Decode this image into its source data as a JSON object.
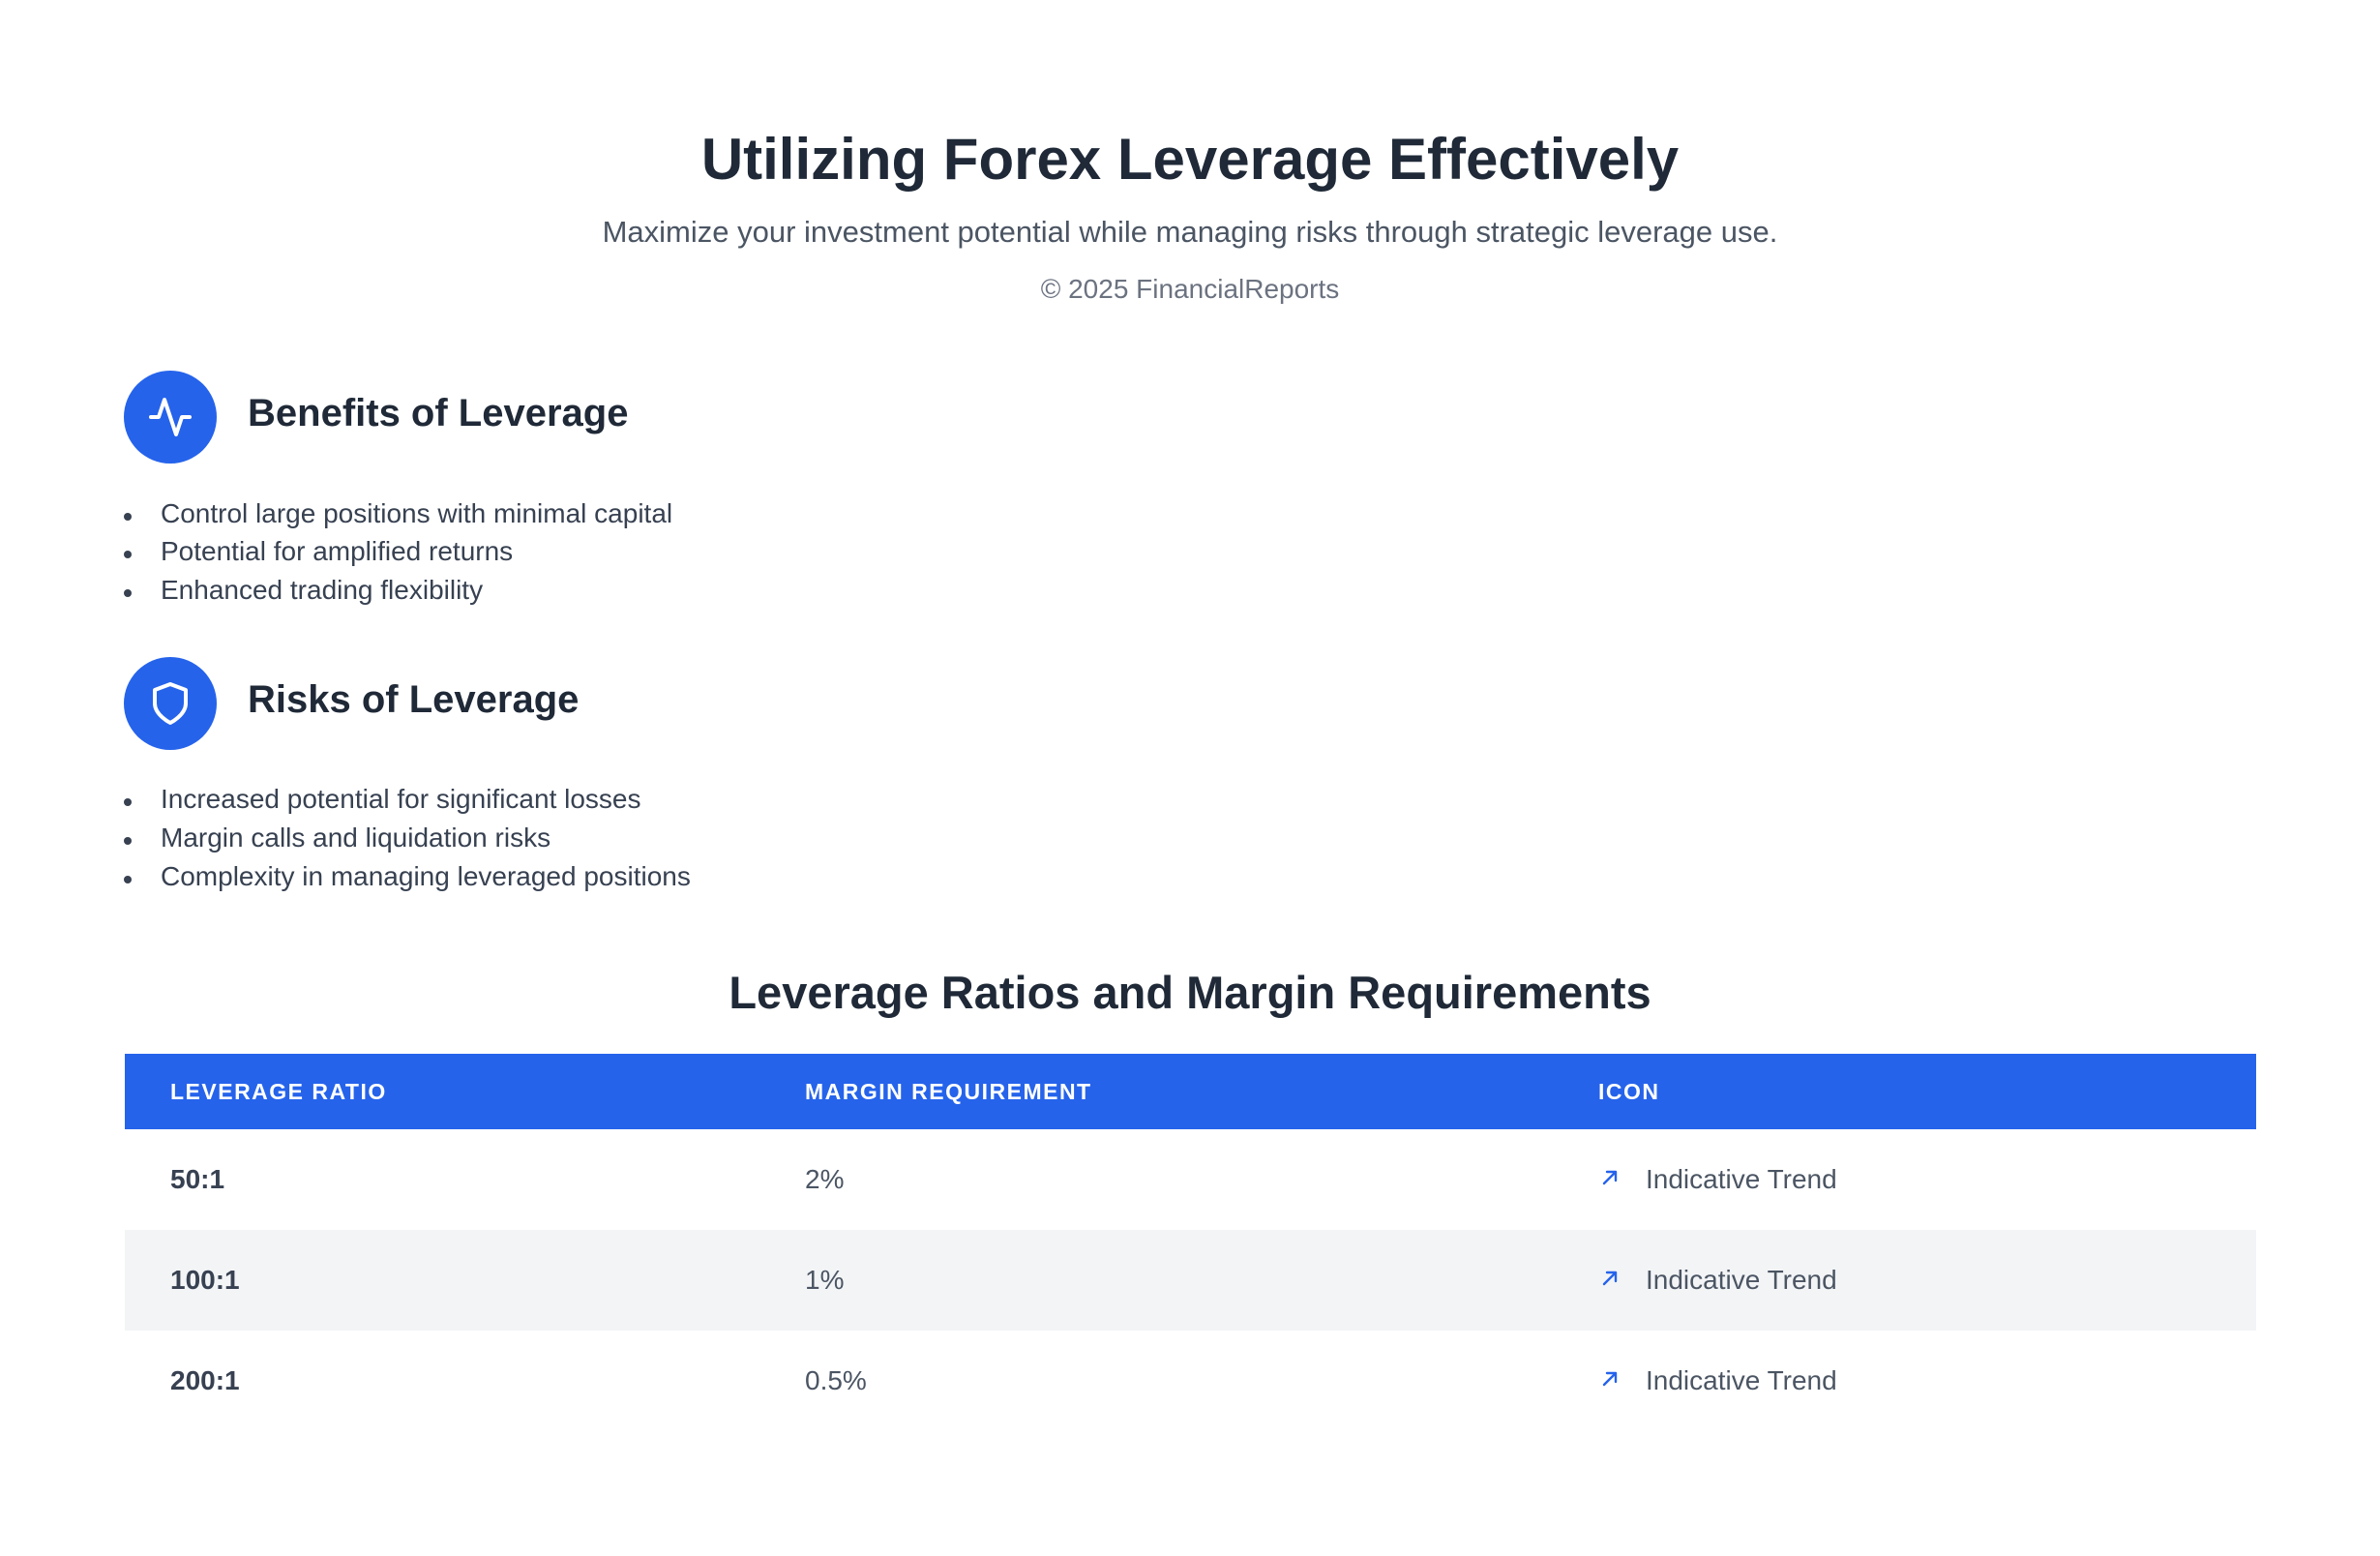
{
  "header": {
    "title": "Utilizing Forex Leverage Effectively",
    "subtitle": "Maximize your investment potential while managing risks through strategic leverage use.",
    "copyright": "©  2025 FinancialReports"
  },
  "sections": [
    {
      "heading": "Benefits of Leverage",
      "items": [
        "Control large positions with minimal capital",
        "Potential for amplified returns",
        "Enhanced trading flexibility"
      ]
    },
    {
      "heading": "Risks of Leverage",
      "items": [
        "Increased potential for significant losses",
        "Margin calls and liquidation risks",
        "Complexity in managing leveraged positions"
      ]
    }
  ],
  "table": {
    "title": "Leverage Ratios and Margin Requirements",
    "columns": [
      "LEVERAGE RATIO",
      "MARGIN REQUIREMENT",
      "ICON"
    ],
    "rows": [
      [
        "50:1",
        "2%",
        "Indicative Trend"
      ],
      [
        "100:1",
        "1%",
        "Indicative Trend"
      ],
      [
        "200:1",
        "0.5%",
        "Indicative Trend"
      ]
    ]
  }
}
